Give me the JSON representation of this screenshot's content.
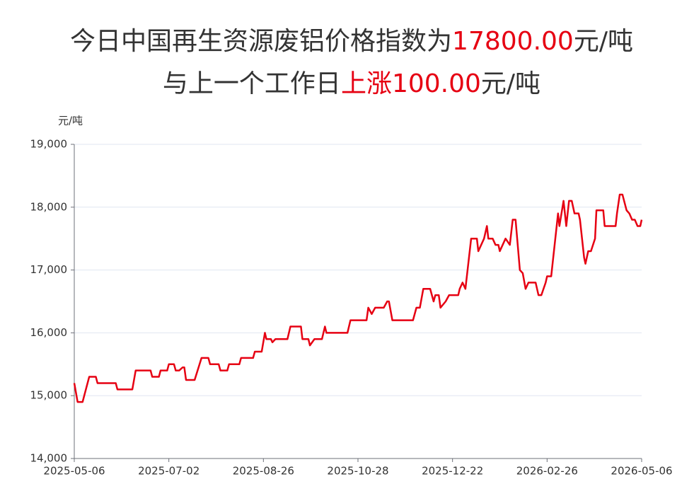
{
  "chart_data": {
    "type": "line",
    "title_parts": [
      {
        "text": "今日中国再生资源废铝价格指数为",
        "color": "#333333"
      },
      {
        "text": "17800.00",
        "color": "#e60012"
      },
      {
        "text": "元/吨",
        "color": "#333333"
      }
    ],
    "subtitle_parts": [
      {
        "text": "与上一个工作日",
        "color": "#333333"
      },
      {
        "text": "上涨",
        "color": "#e60012"
      },
      {
        "text": "100.00",
        "color": "#e60012"
      },
      {
        "text": "元/吨",
        "color": "#333333"
      }
    ],
    "ylabel": "元/吨",
    "ylim": [
      14000,
      19000
    ],
    "yticks": [
      {
        "value": 14000,
        "label": "14,000"
      },
      {
        "value": 15000,
        "label": "15,000"
      },
      {
        "value": 16000,
        "label": "16,000"
      },
      {
        "value": 17000,
        "label": "17,000"
      },
      {
        "value": 18000,
        "label": "18,000"
      },
      {
        "value": 19000,
        "label": "19,000"
      }
    ],
    "xlim": [
      "2025-05-06",
      "2026-05-06"
    ],
    "xticks": [
      "2025-05-06",
      "2025-07-02",
      "2025-08-26",
      "2025-10-28",
      "2025-12-22",
      "2026-02-26",
      "2026-05-06"
    ],
    "grid": true,
    "x": [
      "2025-05-06",
      "2025-05-08",
      "2025-05-11",
      "2025-05-15",
      "2025-05-19",
      "2025-05-20",
      "2025-05-31",
      "2025-06-01",
      "2025-06-10",
      "2025-06-12",
      "2025-06-21",
      "2025-06-22",
      "2025-06-26",
      "2025-06-27",
      "2025-07-01",
      "2025-07-02",
      "2025-07-05",
      "2025-07-06",
      "2025-07-08",
      "2025-07-10",
      "2025-07-11",
      "2025-07-12",
      "2025-07-17",
      "2025-07-21",
      "2025-07-25",
      "2025-07-26",
      "2025-07-31",
      "2025-08-01",
      "2025-08-05",
      "2025-08-06",
      "2025-08-12",
      "2025-08-13",
      "2025-08-20",
      "2025-08-21",
      "2025-08-25",
      "2025-08-27",
      "2025-08-28",
      "2025-08-31",
      "2025-09-01",
      "2025-09-03",
      "2025-09-11",
      "2025-09-13",
      "2025-09-20",
      "2025-09-21",
      "2025-09-25",
      "2025-09-26",
      "2025-09-29",
      "2025-10-04",
      "2025-10-06",
      "2025-10-07",
      "2025-10-21",
      "2025-10-23",
      "2025-11-02",
      "2025-11-03",
      "2025-11-05",
      "2025-11-07",
      "2025-11-12",
      "2025-11-14",
      "2025-11-15",
      "2025-11-17",
      "2025-11-29",
      "2025-12-01",
      "2025-12-03",
      "2025-12-05",
      "2025-12-09",
      "2025-12-11",
      "2025-12-12",
      "2025-12-14",
      "2025-12-15",
      "2025-12-18",
      "2025-12-20",
      "2025-12-26",
      "2025-12-27",
      "2025-12-29",
      "2025-12-31",
      "2026-01-04",
      "2026-01-08",
      "2026-01-09",
      "2026-01-13",
      "2026-01-15",
      "2026-01-16",
      "2026-01-19",
      "2026-01-21",
      "2026-01-23",
      "2026-01-24",
      "2026-01-26",
      "2026-01-28",
      "2026-01-31",
      "2026-02-02",
      "2026-02-04",
      "2026-02-07",
      "2026-02-09",
      "2026-02-11",
      "2026-02-13",
      "2026-02-18",
      "2026-02-20",
      "2026-02-22",
      "2026-02-25",
      "2026-02-26",
      "2026-03-01",
      "2026-03-06",
      "2026-03-07",
      "2026-03-10",
      "2026-03-12",
      "2026-03-14",
      "2026-03-16",
      "2026-03-18",
      "2026-03-21",
      "2026-03-22",
      "2026-03-25",
      "2026-03-26",
      "2026-03-28",
      "2026-03-30",
      "2026-04-02",
      "2026-04-03",
      "2026-04-08",
      "2026-04-09",
      "2026-04-17",
      "2026-04-18",
      "2026-04-20",
      "2026-04-22",
      "2026-04-25",
      "2026-04-27",
      "2026-04-29",
      "2026-05-01",
      "2026-05-03",
      "2026-05-05",
      "2026-05-06"
    ],
    "series": [
      {
        "name": "废铝价格指数",
        "color": "#e60012",
        "values": [
          15200,
          14900,
          14900,
          15300,
          15300,
          15200,
          15200,
          15100,
          15100,
          15400,
          15400,
          15300,
          15300,
          15400,
          15400,
          15500,
          15500,
          15400,
          15400,
          15450,
          15450,
          15250,
          15250,
          15600,
          15600,
          15500,
          15500,
          15400,
          15400,
          15500,
          15500,
          15600,
          15600,
          15700,
          15700,
          16000,
          15900,
          15900,
          15850,
          15900,
          15900,
          16100,
          16100,
          15900,
          15900,
          15800,
          15900,
          15900,
          16100,
          16000,
          16000,
          16200,
          16200,
          16400,
          16300,
          16400,
          16400,
          16500,
          16500,
          16200,
          16200,
          16400,
          16400,
          16700,
          16700,
          16500,
          16600,
          16600,
          16400,
          16500,
          16600,
          16600,
          16700,
          16800,
          16700,
          17500,
          17500,
          17300,
          17500,
          17700,
          17500,
          17500,
          17400,
          17400,
          17300,
          17400,
          17500,
          17400,
          17800,
          17800,
          17000,
          16950,
          16700,
          16800,
          16800,
          16600,
          16600,
          16800,
          16900,
          16900,
          17900,
          17700,
          18100,
          17700,
          18100,
          18100,
          17900,
          17900,
          17800,
          17200,
          17100,
          17300,
          17300,
          17500,
          17950,
          17950,
          17700,
          17700,
          17900,
          18200,
          18200,
          17950,
          17900,
          17800,
          17800,
          17700,
          17700,
          17800
        ]
      }
    ]
  }
}
